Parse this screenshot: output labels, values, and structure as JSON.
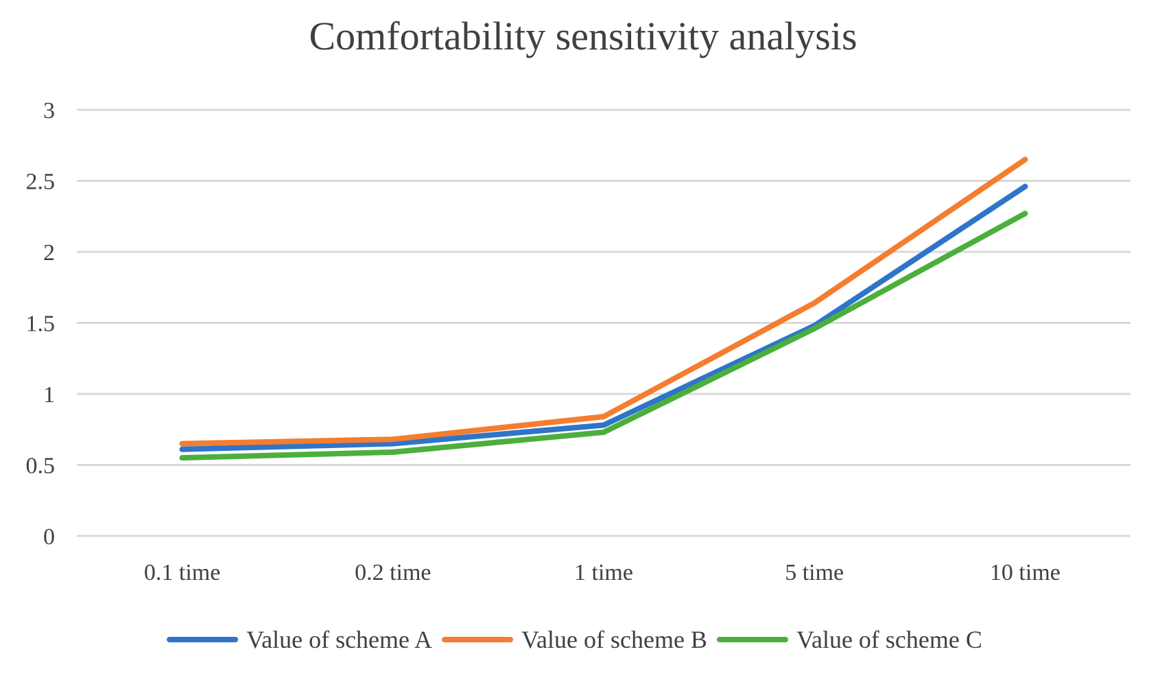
{
  "chart_data": {
    "type": "line",
    "title": "Comfortability sensitivity analysis",
    "xlabel": "",
    "ylabel": "",
    "categories": [
      "0.1 time",
      "0.2 time",
      "1 time",
      "5 time",
      "10 time"
    ],
    "y_ticks": [
      "0",
      "0.5",
      "1",
      "1.5",
      "2",
      "2.5",
      "3"
    ],
    "ylim": [
      0,
      3
    ],
    "grid": true,
    "legend_position": "bottom",
    "series": [
      {
        "name": "Value of scheme A",
        "color": "#2e75c9",
        "values": [
          0.61,
          0.65,
          0.78,
          1.48,
          2.46
        ]
      },
      {
        "name": "Value of scheme B",
        "color": "#f47d2f",
        "values": [
          0.65,
          0.68,
          0.84,
          1.64,
          2.65
        ]
      },
      {
        "name": "Value of scheme C",
        "color": "#4caf3d",
        "values": [
          0.55,
          0.59,
          0.73,
          1.46,
          2.27
        ]
      }
    ]
  }
}
